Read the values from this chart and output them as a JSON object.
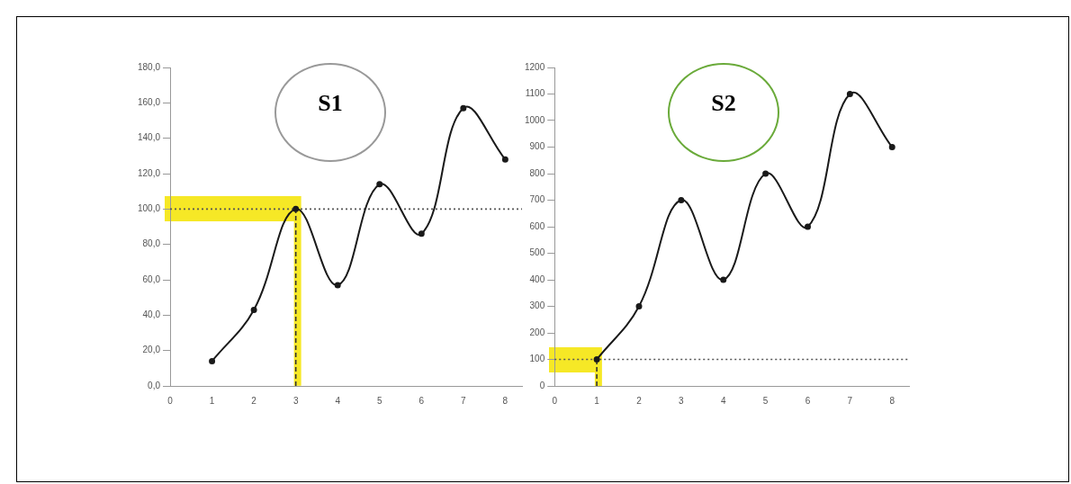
{
  "chart_data": [
    {
      "type": "line",
      "title": "S1",
      "x": [
        1,
        2,
        3,
        4,
        5,
        6,
        7,
        8
      ],
      "values": [
        14,
        43,
        100,
        57,
        114,
        86,
        157,
        128
      ],
      "color": "#1a1a1a",
      "marker": "circle",
      "line_style": "solid",
      "xlim": [
        0,
        8.4
      ],
      "xticks": [
        0,
        1,
        2,
        3,
        4,
        5,
        6,
        7,
        8
      ],
      "ylim": [
        0,
        180
      ],
      "yticks": [
        {
          "value": 0,
          "label": "0,0"
        },
        {
          "value": 20,
          "label": "20,0"
        },
        {
          "value": 40,
          "label": "40,0"
        },
        {
          "value": 60,
          "label": "60,0"
        },
        {
          "value": 80,
          "label": "80,0"
        },
        {
          "value": 100,
          "label": "100,0"
        },
        {
          "value": 120,
          "label": "120,0"
        },
        {
          "value": 140,
          "label": "140,0"
        },
        {
          "value": 160,
          "label": "160,0"
        },
        {
          "value": 180,
          "label": "180,0"
        }
      ],
      "ref_lines": [
        {
          "axis": "y",
          "value": 100,
          "line_style": "dotted",
          "color": "#555555"
        },
        {
          "axis": "x",
          "value": 3,
          "line_style": "dashed",
          "color": "#333333"
        }
      ]
    },
    {
      "type": "line",
      "title": "S2",
      "x": [
        1,
        2,
        3,
        4,
        5,
        6,
        7,
        8
      ],
      "values": [
        100,
        300,
        700,
        400,
        800,
        600,
        1100,
        900
      ],
      "color": "#1a1a1a",
      "marker": "circle",
      "line_style": "solid",
      "xlim": [
        0,
        8.4
      ],
      "xticks": [
        0,
        1,
        2,
        3,
        4,
        5,
        6,
        7,
        8
      ],
      "ylim": [
        0,
        1200
      ],
      "yticks": [
        0,
        100,
        200,
        300,
        400,
        500,
        600,
        700,
        800,
        900,
        1000,
        1100,
        1200
      ],
      "ref_lines": [
        {
          "axis": "y",
          "value": 100,
          "line_style": "dotted",
          "color": "#555555"
        },
        {
          "axis": "x",
          "value": 1,
          "line_style": "dashed",
          "color": "#333333"
        }
      ]
    }
  ]
}
